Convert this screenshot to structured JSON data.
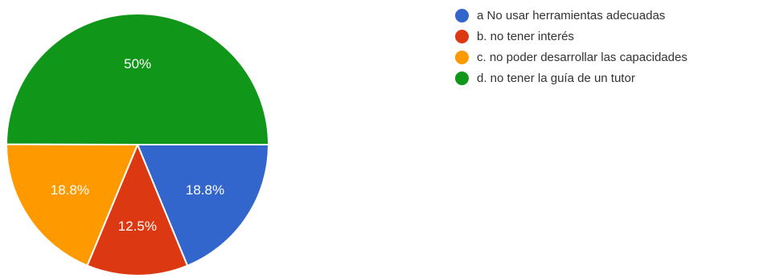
{
  "chart_data": {
    "type": "pie",
    "categories": [
      "a No usar herramientas adecuadas",
      "b. no tener interés",
      "c. no poder desarrollar las capacidades",
      "d. no tener la guía de un tutor"
    ],
    "values": [
      18.8,
      12.5,
      18.8,
      50
    ],
    "data_labels": [
      "18.8%",
      "12.5%",
      "18.8%",
      "50%"
    ],
    "colors": [
      "#3366cc",
      "#dc3912",
      "#ff9900",
      "#109618"
    ],
    "legend": "right"
  }
}
